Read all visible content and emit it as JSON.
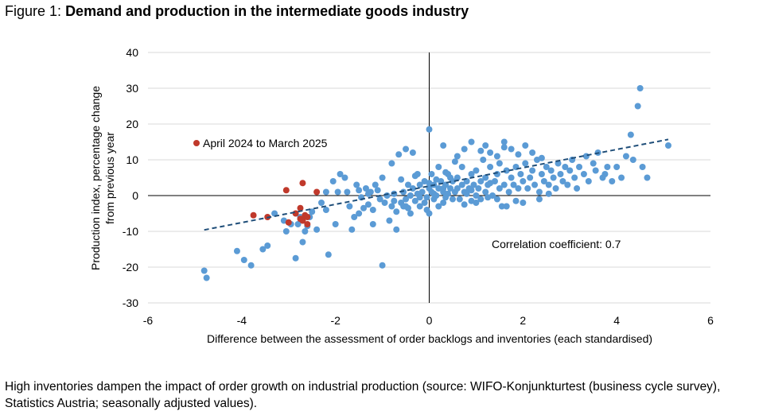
{
  "figure": {
    "label": "Figure 1:",
    "title": "Demand and production in the intermediate goods industry"
  },
  "caption": "High inventories dampen the impact of order growth on industrial production (source: WIFO-Konjunkturtest (business cycle survey), Statistics Austria; seasonally adjusted values).",
  "colors": {
    "main_points": "#5b9bd5",
    "highlight_points": "#c0392b",
    "trendline": "#1f4e79",
    "axis": "#000000",
    "grid": "#d9d9d9"
  },
  "chart_data": {
    "type": "scatter",
    "xlabel": "Difference between the assessment of order backlogs and inventories (each standardised)",
    "ylabel": "Production index, percentage change from previous year",
    "ylabel_lines": [
      "Production index, percentage change",
      "from previous year"
    ],
    "xlim": [
      -6,
      6
    ],
    "ylim": [
      -30,
      40
    ],
    "xticks": [
      -6,
      -4,
      -2,
      0,
      2,
      4,
      6
    ],
    "yticks": [
      -30,
      -20,
      -10,
      0,
      10,
      20,
      30,
      40
    ],
    "xtick_labels": [
      "-6",
      "-4",
      "-2",
      "0",
      "2",
      "4",
      "6"
    ],
    "ytick_labels": [
      "-30",
      "-20",
      "-10",
      "0",
      "10",
      "20",
      "30",
      "40"
    ],
    "horizontal_grid": true,
    "legend_position": "upper-left",
    "annotation": "Correlation coefficient: 0.7",
    "trendline": {
      "x": [
        -4.8,
        5.1
      ],
      "y": [
        -9.6,
        15.7
      ],
      "style": "dashed"
    },
    "series": [
      {
        "name": "",
        "color": "#5b9bd5",
        "points": [
          [
            -4.8,
            -21
          ],
          [
            -4.75,
            -23
          ],
          [
            -4.1,
            -15.5
          ],
          [
            -3.95,
            -18
          ],
          [
            -3.8,
            -19.5
          ],
          [
            -3.55,
            -15
          ],
          [
            -3.45,
            -14
          ],
          [
            -3.3,
            -5
          ],
          [
            -3.1,
            -7
          ],
          [
            -3.05,
            -10
          ],
          [
            -2.95,
            -8
          ],
          [
            -2.85,
            -17.5
          ],
          [
            -2.8,
            -8
          ],
          [
            -2.75,
            -6
          ],
          [
            -2.7,
            -13
          ],
          [
            -2.65,
            -10
          ],
          [
            -2.6,
            -8.5
          ],
          [
            -2.55,
            -6
          ],
          [
            -2.5,
            -4.5
          ],
          [
            -2.4,
            -9.5
          ],
          [
            -2.3,
            -2
          ],
          [
            -2.2,
            1
          ],
          [
            -2.2,
            -4
          ],
          [
            -2.15,
            -16.5
          ],
          [
            -2.05,
            4
          ],
          [
            -2.0,
            -8
          ],
          [
            -1.95,
            1
          ],
          [
            -1.9,
            6
          ],
          [
            -1.8,
            5
          ],
          [
            -1.75,
            1
          ],
          [
            -1.7,
            -3
          ],
          [
            -1.6,
            -6
          ],
          [
            -1.55,
            3
          ],
          [
            -1.5,
            -5
          ],
          [
            -1.5,
            1.5
          ],
          [
            -1.45,
            -0.5
          ],
          [
            -1.4,
            -3.5
          ],
          [
            -1.35,
            2
          ],
          [
            -1.3,
            0.5
          ],
          [
            -1.3,
            -2.5
          ],
          [
            -1.25,
            1
          ],
          [
            -1.2,
            -4
          ],
          [
            -1.2,
            -8
          ],
          [
            -1.1,
            1.5
          ],
          [
            -1.05,
            -1
          ],
          [
            -1.0,
            -19.5
          ],
          [
            -0.95,
            -2
          ],
          [
            -0.9,
            0
          ],
          [
            -0.85,
            -7
          ],
          [
            -0.8,
            -3
          ],
          [
            -0.75,
            0.5
          ],
          [
            -0.7,
            -4.5
          ],
          [
            -0.7,
            -9.5
          ],
          [
            -0.65,
            11.5
          ],
          [
            -0.6,
            -2
          ],
          [
            -0.55,
            1
          ],
          [
            -0.5,
            -1
          ],
          [
            -0.5,
            -3
          ],
          [
            -0.45,
            3
          ],
          [
            -0.4,
            0
          ],
          [
            -0.4,
            -5
          ],
          [
            -0.35,
            2
          ],
          [
            -0.3,
            -1.5
          ],
          [
            -0.3,
            5.5
          ],
          [
            -0.25,
            0.5
          ],
          [
            -0.2,
            -3
          ],
          [
            -0.2,
            3
          ],
          [
            -0.15,
            1
          ],
          [
            -0.1,
            -2
          ],
          [
            -0.1,
            4
          ],
          [
            -0.05,
            -0.5
          ],
          [
            0.0,
            2
          ],
          [
            0.0,
            -5
          ],
          [
            0.05,
            1
          ],
          [
            0.05,
            6
          ],
          [
            0.1,
            -1
          ],
          [
            0.1,
            3
          ],
          [
            0.15,
            0
          ],
          [
            0.2,
            2
          ],
          [
            0.2,
            -3
          ],
          [
            0.25,
            4
          ],
          [
            0.3,
            1
          ],
          [
            0.3,
            -2
          ],
          [
            0.35,
            3
          ],
          [
            0.4,
            0.5
          ],
          [
            0.4,
            6
          ],
          [
            0.45,
            2
          ],
          [
            0.5,
            -1
          ],
          [
            0.5,
            4
          ],
          [
            0.55,
            1
          ],
          [
            -0.75,
            -1.5
          ],
          [
            -0.6,
            4.5
          ],
          [
            -0.45,
            -3.5
          ],
          [
            -0.2,
            -0.5
          ],
          [
            0.1,
            0.5
          ],
          [
            0.35,
            -0.5
          ],
          [
            0.45,
            5
          ],
          [
            -0.55,
            -3
          ],
          [
            0.3,
            2
          ],
          [
            0.0,
            3.5
          ],
          [
            0.6,
            2
          ],
          [
            0.6,
            5
          ],
          [
            0.65,
            -1
          ],
          [
            0.7,
            3
          ],
          [
            0.7,
            8
          ],
          [
            0.75,
            1
          ],
          [
            0.8,
            4
          ],
          [
            0.85,
            2
          ],
          [
            0.9,
            6
          ],
          [
            0.9,
            -1.5
          ],
          [
            0.95,
            3
          ],
          [
            1.0,
            0
          ],
          [
            1.0,
            7
          ],
          [
            1.05,
            2
          ],
          [
            1.1,
            4
          ],
          [
            1.15,
            10
          ],
          [
            1.2,
            1
          ],
          [
            1.2,
            5
          ],
          [
            1.25,
            3
          ],
          [
            1.3,
            8
          ],
          [
            1.35,
            0
          ],
          [
            1.4,
            4
          ],
          [
            1.45,
            6
          ],
          [
            1.5,
            2
          ],
          [
            1.5,
            9
          ],
          [
            1.55,
            -3
          ],
          [
            1.6,
            3
          ],
          [
            1.65,
            7
          ],
          [
            1.7,
            1
          ],
          [
            1.75,
            5
          ],
          [
            1.8,
            3
          ],
          [
            1.85,
            8
          ],
          [
            1.9,
            2
          ],
          [
            1.95,
            6
          ],
          [
            2.0,
            4
          ],
          [
            2.05,
            9
          ],
          [
            2.1,
            2
          ],
          [
            2.15,
            5
          ],
          [
            2.2,
            7
          ],
          [
            2.25,
            3
          ],
          [
            2.3,
            10
          ],
          [
            2.35,
            1
          ],
          [
            2.4,
            6
          ],
          [
            2.45,
            4
          ],
          [
            2.5,
            8
          ],
          [
            2.55,
            3
          ],
          [
            2.6,
            7
          ],
          [
            2.65,
            5
          ],
          [
            2.7,
            2
          ],
          [
            2.75,
            9
          ],
          [
            2.8,
            6
          ],
          [
            2.85,
            4
          ],
          [
            2.9,
            8
          ],
          [
            2.95,
            3
          ],
          [
            3.0,
            7
          ],
          [
            3.05,
            10
          ],
          [
            3.1,
            5
          ],
          [
            3.15,
            2
          ],
          [
            3.2,
            8
          ],
          [
            3.3,
            6
          ],
          [
            3.35,
            11
          ],
          [
            3.4,
            4
          ],
          [
            3.5,
            9
          ],
          [
            3.55,
            7
          ],
          [
            3.6,
            12
          ],
          [
            3.7,
            5
          ],
          [
            3.8,
            8
          ],
          [
            3.9,
            4
          ],
          [
            4.0,
            8
          ],
          [
            4.1,
            5
          ],
          [
            4.3,
            17
          ],
          [
            4.35,
            10
          ],
          [
            4.45,
            25
          ],
          [
            4.5,
            30
          ],
          [
            4.55,
            8
          ],
          [
            4.65,
            5
          ],
          [
            5.1,
            14
          ],
          [
            4.2,
            11
          ],
          [
            3.75,
            6
          ],
          [
            2.35,
            -1
          ],
          [
            -0.35,
            12
          ],
          [
            0.6,
            11
          ],
          [
            0.75,
            13
          ],
          [
            0.9,
            15
          ],
          [
            1.1,
            12.5
          ],
          [
            1.2,
            14
          ],
          [
            1.3,
            12
          ],
          [
            1.45,
            11
          ],
          [
            1.6,
            15
          ],
          [
            1.75,
            13
          ],
          [
            1.9,
            11.5
          ],
          [
            2.05,
            14
          ],
          [
            2.2,
            12
          ],
          [
            2.4,
            10.5
          ],
          [
            0.0,
            18.5
          ],
          [
            0.3,
            14
          ],
          [
            -0.5,
            13
          ],
          [
            -0.8,
            9
          ],
          [
            1.6,
            13.5
          ],
          [
            -1.0,
            5
          ],
          [
            1.0,
            -2
          ],
          [
            1.25,
            -0.5
          ],
          [
            1.45,
            -1
          ],
          [
            1.65,
            -3
          ],
          [
            1.85,
            -1.5
          ],
          [
            2.0,
            -2
          ],
          [
            0.75,
            -2.5
          ],
          [
            0.9,
            1.5
          ],
          [
            2.55,
            0.5
          ],
          [
            -0.05,
            -4
          ],
          [
            -1.15,
            3
          ],
          [
            -1.65,
            -9.5
          ],
          [
            0.2,
            8
          ],
          [
            0.55,
            9.5
          ],
          [
            0.35,
            6.5
          ],
          [
            0.8,
            0.5
          ],
          [
            1.1,
            -1
          ],
          [
            1.3,
            3.5
          ],
          [
            0.15,
            4.5
          ],
          [
            -0.25,
            6
          ]
        ]
      },
      {
        "name": "April 2024 to March 2025",
        "color": "#c0392b",
        "points": [
          [
            -3.75,
            -5.5
          ],
          [
            -3.45,
            -6
          ],
          [
            -3.05,
            1.5
          ],
          [
            -3.0,
            -7.5
          ],
          [
            -2.85,
            -5
          ],
          [
            -2.75,
            -6.5
          ],
          [
            -2.7,
            -7
          ],
          [
            -2.65,
            -5.5
          ],
          [
            -2.6,
            -6
          ],
          [
            -2.6,
            -8
          ],
          [
            -2.75,
            -3.5
          ],
          [
            -2.4,
            1
          ],
          [
            -2.7,
            3.5
          ]
        ]
      }
    ]
  }
}
